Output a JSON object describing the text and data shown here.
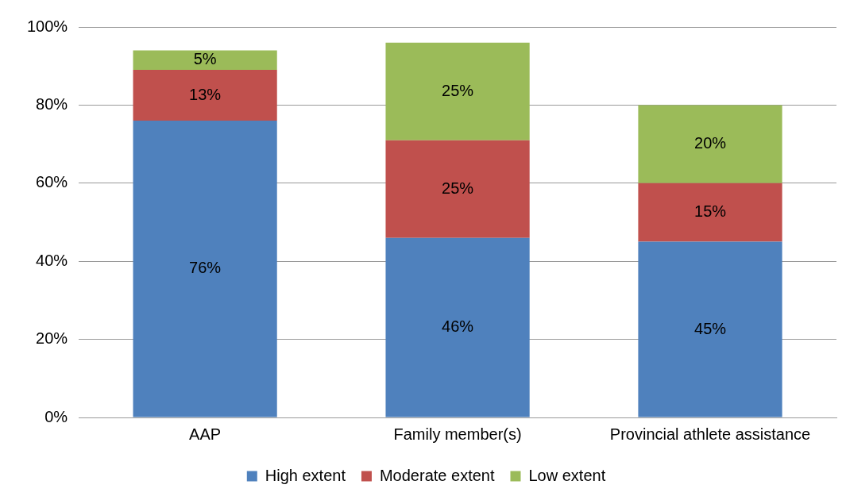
{
  "chart_data": {
    "type": "bar",
    "stacked": true,
    "categories": [
      "AAP",
      "Family member(s)",
      "Provincial athlete assistance"
    ],
    "series": [
      {
        "name": "High extent",
        "color": "#4f81bd",
        "values": [
          76,
          46,
          45
        ],
        "value_labels": [
          "76%",
          "46%",
          "45%"
        ]
      },
      {
        "name": "Moderate extent",
        "color": "#c0504d",
        "values": [
          13,
          25,
          15
        ],
        "value_labels": [
          "13%",
          "25%",
          "15%"
        ]
      },
      {
        "name": "Low extent",
        "color": "#9bbb59",
        "values": [
          5,
          25,
          20
        ],
        "value_labels": [
          "5%",
          "25%",
          "20%"
        ]
      }
    ],
    "ylim": [
      0,
      100
    ],
    "yticks": [
      {
        "value": 0,
        "label": "0%"
      },
      {
        "value": 20,
        "label": "20%"
      },
      {
        "value": 40,
        "label": "40%"
      },
      {
        "value": 60,
        "label": "60%"
      },
      {
        "value": 80,
        "label": "80%"
      },
      {
        "value": 100,
        "label": "100%"
      }
    ],
    "grid": "y",
    "legend": "bottom"
  }
}
